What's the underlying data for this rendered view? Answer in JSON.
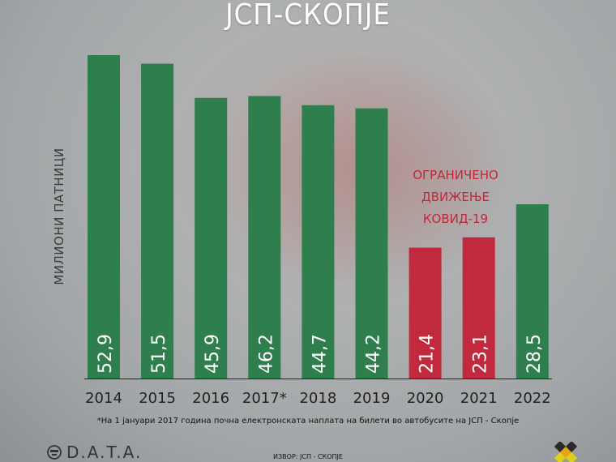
{
  "title": "ЈСП-СКОПЈЕ",
  "annotation_covid": [
    "ОГРАНИЧЕНО",
    "ДВИЖЕЊЕ",
    "КОВИД-19"
  ],
  "footnote": "*На 1 јануари 2017 година почна електронската наплата на билети во автобусите на ЈСП - Скопје",
  "source": "ИЗВОР: ЈСП - СКОПЈЕ",
  "logo_text": "D.A.T.A.",
  "colors": {
    "normal_bar": "#2f7e4e",
    "covid_bar": "#c12a3e",
    "axis": "#222222"
  },
  "chart_data": {
    "type": "bar",
    "categories": [
      "2014",
      "2015",
      "2016",
      "2017*",
      "2018",
      "2019",
      "2020",
      "2021",
      "2022"
    ],
    "values": [
      52.9,
      51.5,
      45.9,
      46.2,
      44.7,
      44.2,
      21.4,
      23.1,
      28.5
    ],
    "value_labels": [
      "52,9",
      "51,5",
      "45,9",
      "46,2",
      "44,7",
      "44,2",
      "21,4",
      "23,1",
      "28,5"
    ],
    "highlighted": [
      false,
      false,
      false,
      false,
      false,
      false,
      true,
      true,
      false
    ],
    "ylabel": "МИЛИОНИ ПАТНИЦИ",
    "ylim": [
      0,
      52.9
    ],
    "grid": false,
    "legend": "none"
  }
}
